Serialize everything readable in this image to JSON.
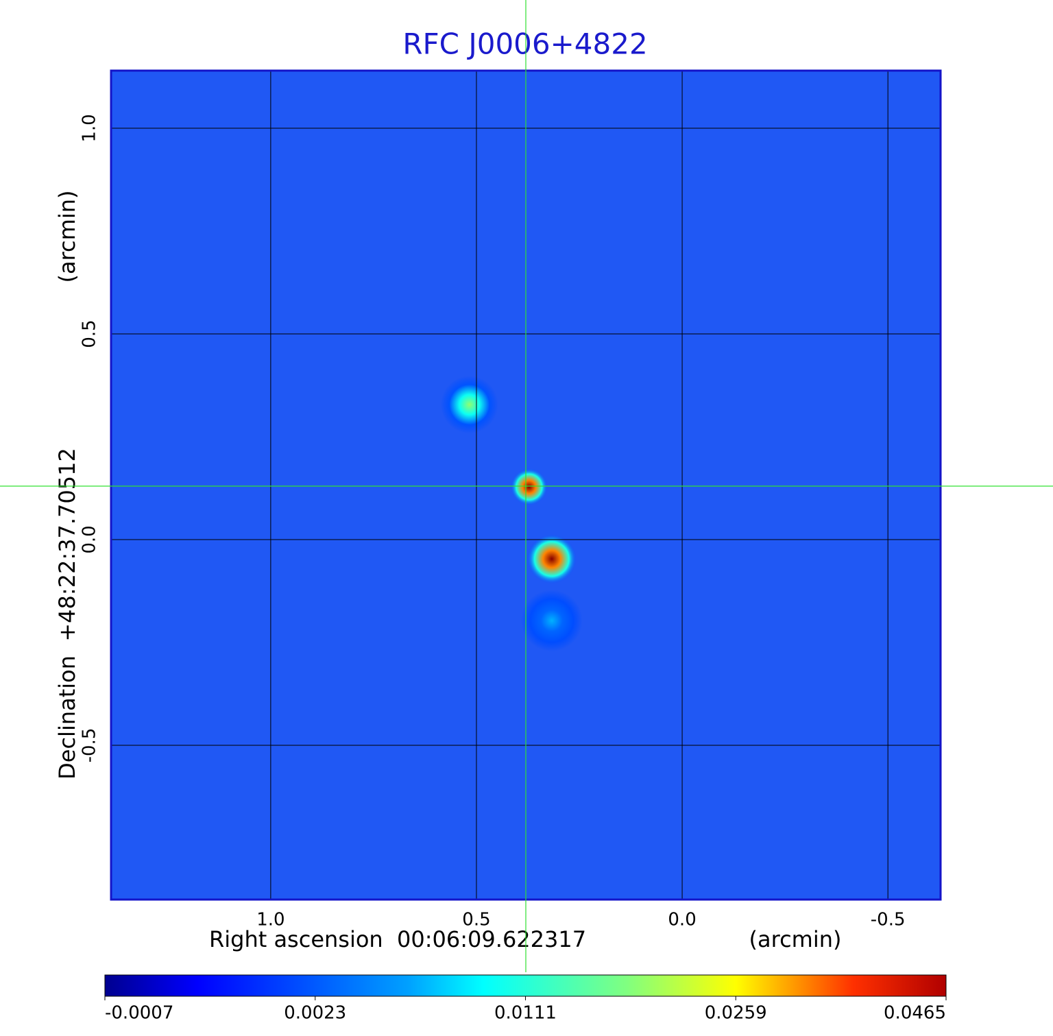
{
  "chart_data": {
    "type": "image",
    "title": "RFC J0006+4822",
    "x_label": "Right ascension  00:06:09.622317",
    "x_unit": "(arcmin)",
    "y_label": "Declination  +48:22:37.70512",
    "y_unit": "(arcmin)",
    "xlim": [
      1.388,
      -0.628
    ],
    "ylim": [
      -0.875,
      1.14
    ],
    "xticks": [
      {
        "value": 1,
        "label": "1.0"
      },
      0.5,
      {
        "value": 0,
        "label": "0.0"
      },
      -0.5
    ],
    "yticks": [
      {
        "value": 1,
        "label": "1.0"
      },
      0.5,
      {
        "value": 0,
        "label": "0.0"
      },
      -0.5
    ],
    "grid": true,
    "background_color": "#2058f4",
    "frame_color": "#1414c8",
    "crosshair": {
      "x": 0.38,
      "y": 0.13,
      "color": "#30e030"
    },
    "sources": {
      "x": [
        0.517,
        0.372,
        0.317,
        0.317
      ],
      "y": [
        0.328,
        0.128,
        -0.047,
        -0.197
      ],
      "peak": [
        0.012,
        0.0465,
        0.046,
        0.004
      ],
      "radius": [
        0.07,
        0.045,
        0.06,
        0.075
      ]
    },
    "colorbar": {
      "colormap": "jet",
      "ticks": [
        -0.0007,
        0.0023,
        0.0111,
        0.0259,
        0.0465
      ]
    }
  }
}
